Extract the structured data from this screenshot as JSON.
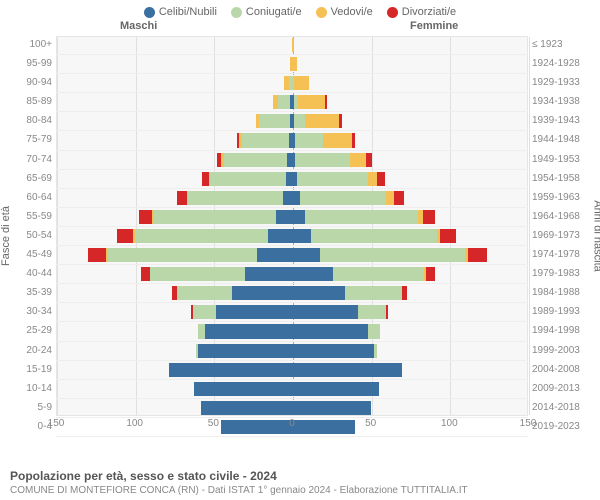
{
  "legend": [
    {
      "label": "Celibi/Nubili",
      "color": "#3b6fa0"
    },
    {
      "label": "Coniugati/e",
      "color": "#b9d7a8"
    },
    {
      "label": "Vedovi/e",
      "color": "#f6c154"
    },
    {
      "label": "Divorziati/e",
      "color": "#d62728"
    }
  ],
  "headers": {
    "male": "Maschi",
    "female": "Femmine",
    "top_year": "≤ 1923"
  },
  "axis": {
    "left_title": "Fasce di età",
    "right_title": "Anni di nascita",
    "x_max": 150,
    "x_ticks": [
      150,
      100,
      50,
      0,
      50,
      100,
      150
    ]
  },
  "rows": [
    {
      "age": "100+",
      "year": "≤ 1923",
      "m": [
        0,
        0,
        0,
        0
      ],
      "f": [
        0,
        0,
        1,
        0
      ]
    },
    {
      "age": "95-99",
      "year": "1924-1928",
      "m": [
        0,
        0,
        1,
        0
      ],
      "f": [
        0,
        0,
        3,
        0
      ]
    },
    {
      "age": "90-94",
      "year": "1929-1933",
      "m": [
        0,
        2,
        3,
        0
      ],
      "f": [
        0,
        1,
        10,
        0
      ]
    },
    {
      "age": "85-89",
      "year": "1934-1938",
      "m": [
        1,
        8,
        3,
        0
      ],
      "f": [
        1,
        3,
        17,
        1
      ]
    },
    {
      "age": "80-84",
      "year": "1939-1943",
      "m": [
        1,
        20,
        2,
        0
      ],
      "f": [
        1,
        7,
        22,
        2
      ]
    },
    {
      "age": "75-79",
      "year": "1944-1948",
      "m": [
        2,
        30,
        2,
        1
      ],
      "f": [
        2,
        18,
        18,
        2
      ]
    },
    {
      "age": "70-74",
      "year": "1949-1953",
      "m": [
        3,
        40,
        2,
        3
      ],
      "f": [
        2,
        35,
        10,
        4
      ]
    },
    {
      "age": "65-69",
      "year": "1954-1958",
      "m": [
        4,
        48,
        1,
        4
      ],
      "f": [
        3,
        45,
        6,
        5
      ]
    },
    {
      "age": "60-64",
      "year": "1959-1963",
      "m": [
        6,
        60,
        1,
        6
      ],
      "f": [
        5,
        55,
        5,
        6
      ]
    },
    {
      "age": "55-59",
      "year": "1964-1968",
      "m": [
        10,
        78,
        1,
        8
      ],
      "f": [
        8,
        72,
        3,
        8
      ]
    },
    {
      "age": "50-54",
      "year": "1969-1973",
      "m": [
        15,
        85,
        1,
        10
      ],
      "f": [
        12,
        80,
        2,
        10
      ]
    },
    {
      "age": "45-49",
      "year": "1974-1978",
      "m": [
        22,
        95,
        1,
        12
      ],
      "f": [
        18,
        92,
        2,
        12
      ]
    },
    {
      "age": "40-44",
      "year": "1979-1983",
      "m": [
        30,
        60,
        0,
        6
      ],
      "f": [
        26,
        58,
        1,
        6
      ]
    },
    {
      "age": "35-39",
      "year": "1984-1988",
      "m": [
        38,
        35,
        0,
        3
      ],
      "f": [
        34,
        36,
        0,
        3
      ]
    },
    {
      "age": "30-34",
      "year": "1989-1993",
      "m": [
        48,
        15,
        0,
        1
      ],
      "f": [
        42,
        18,
        0,
        1
      ]
    },
    {
      "age": "25-29",
      "year": "1994-1998",
      "m": [
        55,
        5,
        0,
        0
      ],
      "f": [
        48,
        8,
        0,
        0
      ]
    },
    {
      "age": "20-24",
      "year": "1999-2003",
      "m": [
        60,
        1,
        0,
        0
      ],
      "f": [
        52,
        2,
        0,
        0
      ]
    },
    {
      "age": "15-19",
      "year": "2004-2008",
      "m": [
        78,
        0,
        0,
        0
      ],
      "f": [
        70,
        0,
        0,
        0
      ]
    },
    {
      "age": "10-14",
      "year": "2009-2013",
      "m": [
        62,
        0,
        0,
        0
      ],
      "f": [
        55,
        0,
        0,
        0
      ]
    },
    {
      "age": "5-9",
      "year": "2014-2018",
      "m": [
        58,
        0,
        0,
        0
      ],
      "f": [
        50,
        0,
        0,
        0
      ]
    },
    {
      "age": "0-4",
      "year": "2019-2023",
      "m": [
        45,
        0,
        0,
        0
      ],
      "f": [
        40,
        0,
        0,
        0
      ]
    }
  ],
  "footer": {
    "title": "Popolazione per età, sesso e stato civile - 2024",
    "sub": "COMUNE DI MONTEFIORE CONCA (RN) - Dati ISTAT 1° gennaio 2024 - Elaborazione TUTTITALIA.IT"
  },
  "colors": {
    "bg": "#f7f7f7",
    "grid": "#e0e0e0"
  }
}
